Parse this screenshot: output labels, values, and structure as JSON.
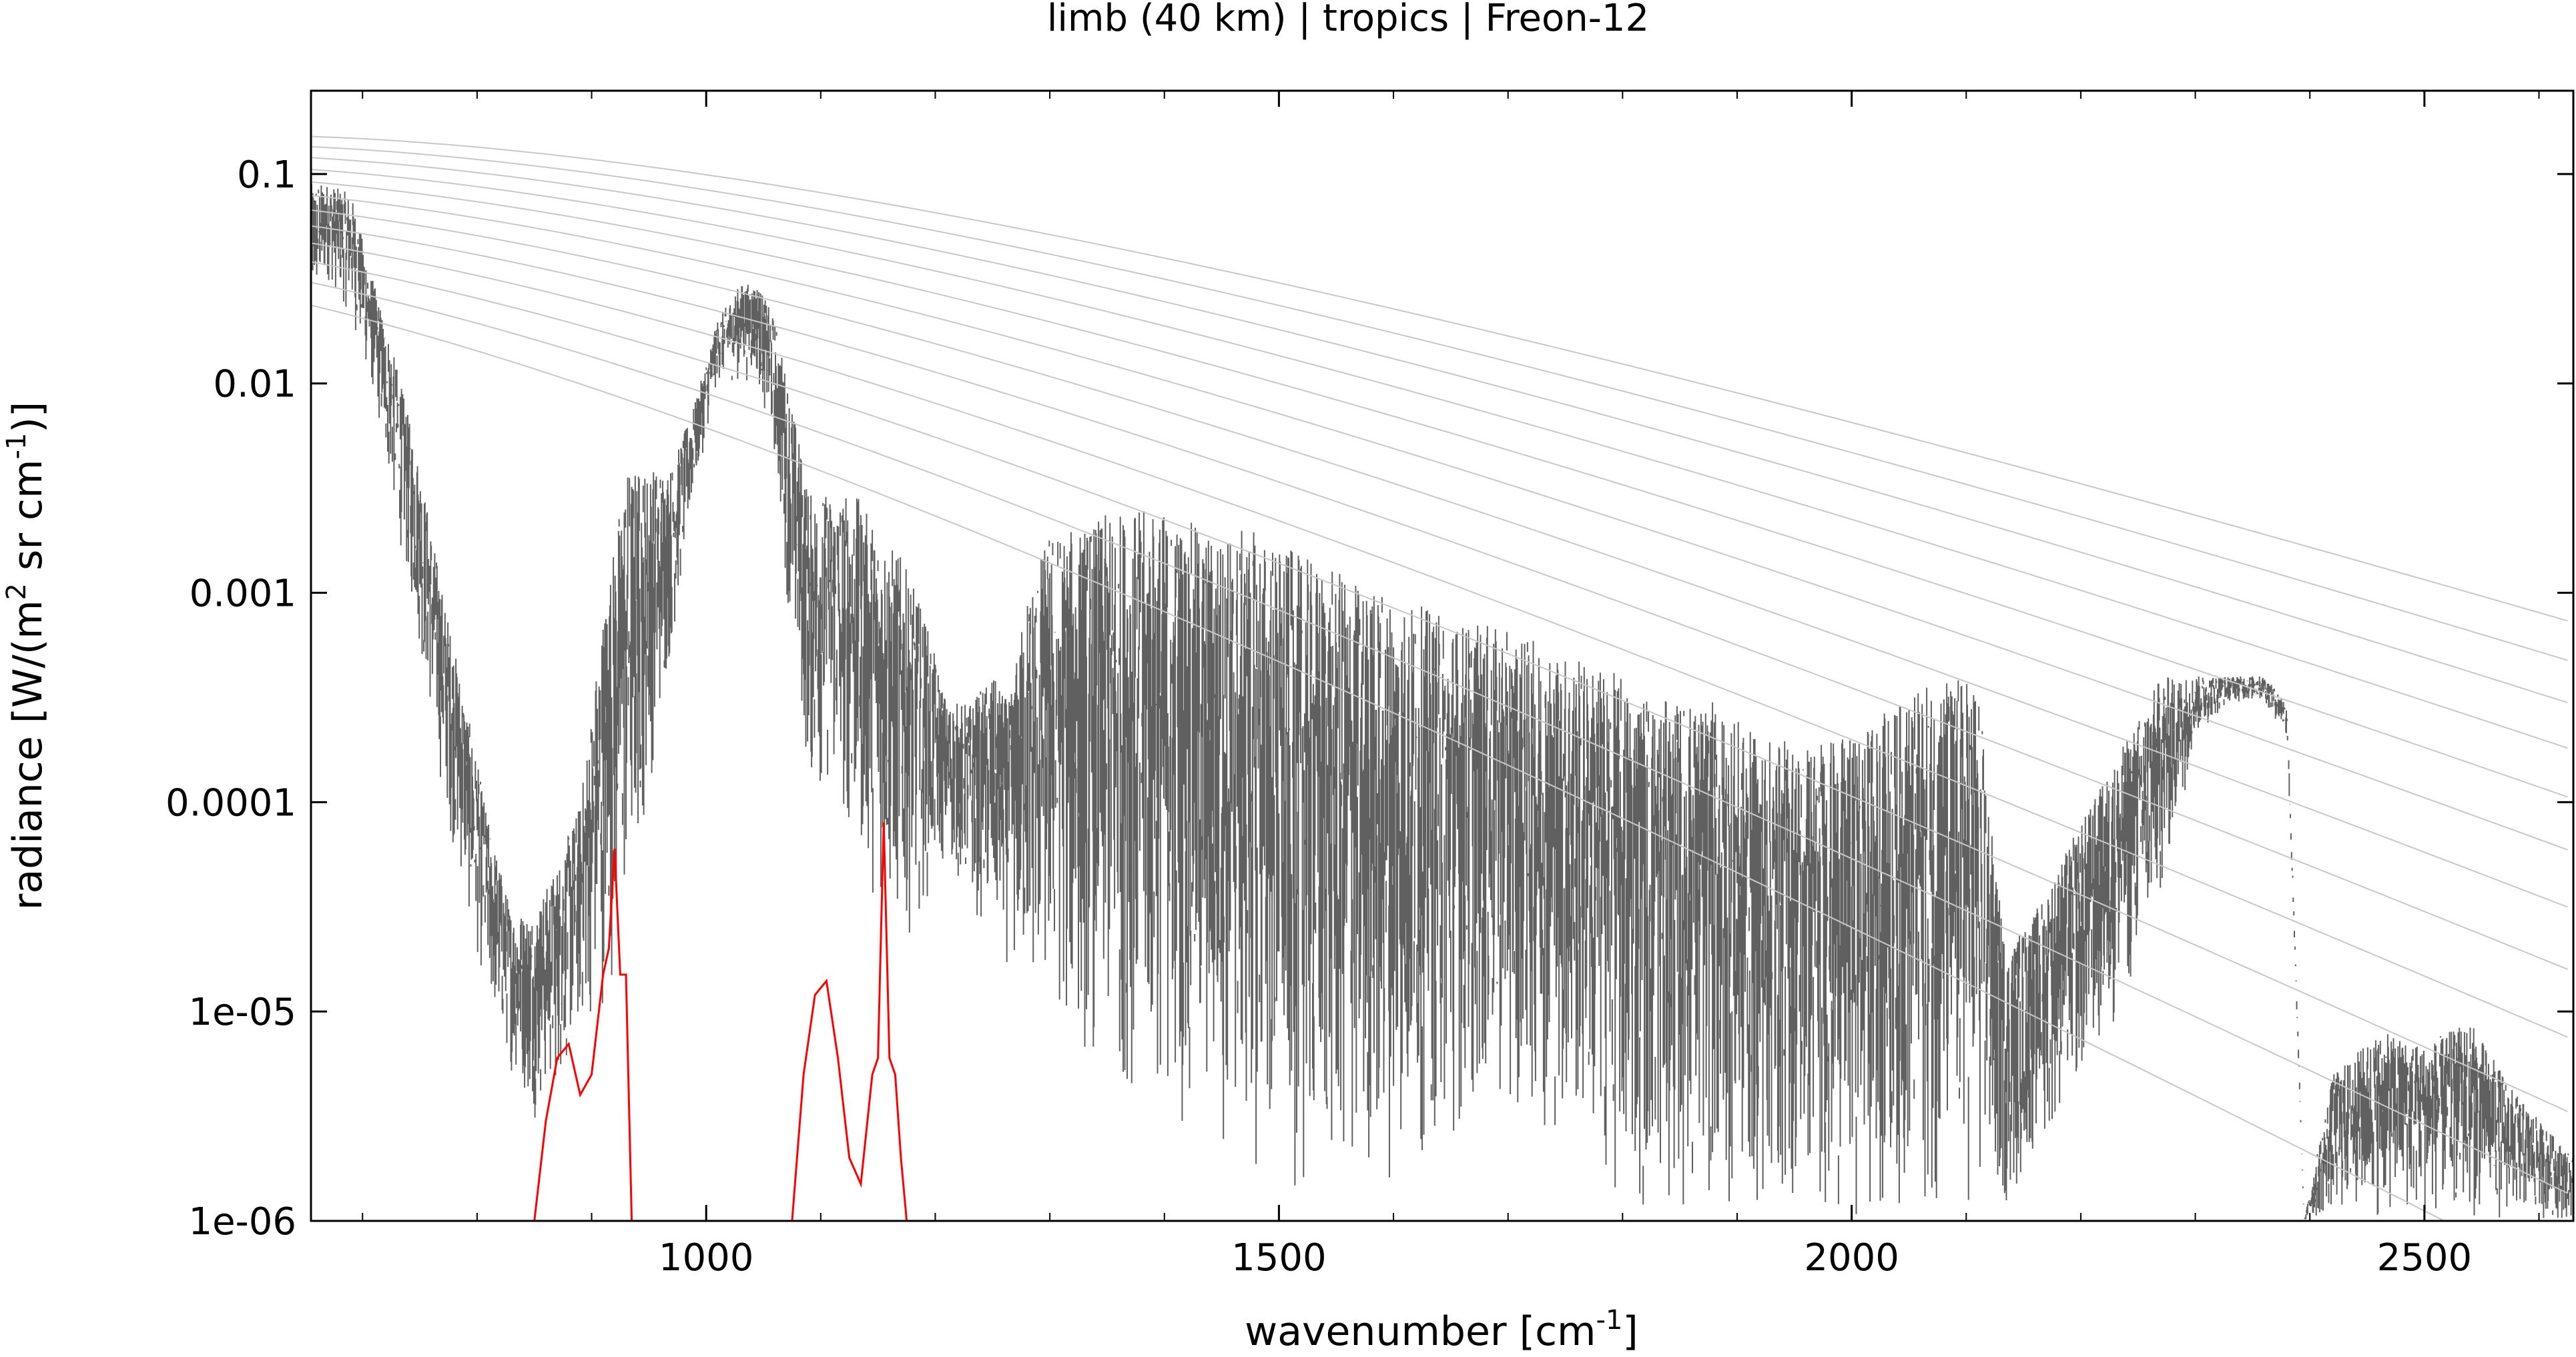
{
  "chart_data": {
    "type": "line",
    "title": "limb (40 km) | tropics | Freon-12",
    "xlabel": {
      "text": "wavenumber [cm",
      "sup": "-1",
      "tail": "]"
    },
    "ylabel": {
      "text": "radiance [W/(m",
      "sup1": "2",
      "mid": " sr cm",
      "sup2": "-1",
      "tail": ")]"
    },
    "xlim": [
      655,
      2630
    ],
    "ylim": [
      1e-06,
      0.25
    ],
    "yscale": "log",
    "grid": false,
    "legend": "none",
    "x_ticks": [
      {
        "value": 1000,
        "label": "1000"
      },
      {
        "value": 1500,
        "label": "1500"
      },
      {
        "value": 2000,
        "label": "2000"
      },
      {
        "value": 2500,
        "label": "2500"
      }
    ],
    "y_ticks": [
      {
        "value": 0.1,
        "label": "0.1"
      },
      {
        "value": 0.01,
        "label": "0.01"
      },
      {
        "value": 0.001,
        "label": "0.001"
      },
      {
        "value": 0.0001,
        "label": "0.0001"
      },
      {
        "value": 1e-05,
        "label": "1e-05"
      },
      {
        "value": 1e-06,
        "label": "1e-06"
      }
    ],
    "colors": {
      "spectrum": "#606060",
      "freon": "#ff0000",
      "planck": "#c8c8c8"
    },
    "series": [
      {
        "color": "#606060",
        "x": [
          655,
          670,
          690,
          710,
          730,
          750,
          770,
          790,
          810,
          830,
          850,
          870,
          890,
          910,
          930,
          950,
          970,
          990,
          1010,
          1030,
          1045,
          1060,
          1075,
          1090,
          1110,
          1130,
          1150,
          1170,
          1190,
          1210,
          1230,
          1250,
          1265,
          1280,
          1300,
          1320,
          1360,
          1400,
          1440,
          1480,
          1520,
          1560,
          1600,
          1640,
          1680,
          1720,
          1760,
          1800,
          1840,
          1880,
          1920,
          1960,
          2000,
          2040,
          2080,
          2110,
          2125,
          2135,
          2160,
          2200,
          2240,
          2270,
          2300,
          2330,
          2360,
          2380,
          2395,
          2420,
          2460,
          2500,
          2540,
          2580,
          2630
        ],
        "upper": [
          0.09,
          0.09,
          0.08,
          0.03,
          0.012,
          0.004,
          0.001,
          0.0003,
          8e-05,
          3e-05,
          3e-05,
          5e-05,
          0.0001,
          0.0008,
          0.004,
          0.004,
          0.004,
          0.008,
          0.02,
          0.03,
          0.03,
          0.02,
          0.008,
          0.003,
          0.003,
          0.003,
          0.002,
          0.0015,
          0.0008,
          0.0003,
          0.0003,
          0.0004,
          0.0003,
          0.001,
          0.002,
          0.002,
          0.0025,
          0.0025,
          0.002,
          0.002,
          0.0015,
          0.0012,
          0.001,
          0.0008,
          0.0007,
          0.0006,
          0.0005,
          0.0004,
          0.0003,
          0.0003,
          0.0002,
          0.0002,
          0.0002,
          0.0003,
          0.0004,
          0.0004,
          5e-05,
          2e-05,
          3e-05,
          8e-05,
          0.0002,
          0.0004,
          0.0004,
          0.0004,
          0.0004,
          0.0003,
          1e-06,
          5e-06,
          8e-06,
          7e-06,
          9e-06,
          4e-06,
          2e-06
        ],
        "lower": [
          0.02,
          0.03,
          0.02,
          0.008,
          0.002,
          0.0005,
          0.0001,
          3e-05,
          1e-05,
          5e-06,
          3e-06,
          4e-06,
          7e-06,
          1e-05,
          2e-05,
          0.0001,
          0.0005,
          0.003,
          0.01,
          0.01,
          0.01,
          0.004,
          0.0005,
          0.0001,
          0.0001,
          5e-05,
          3e-05,
          2e-05,
          3e-05,
          5e-05,
          3e-05,
          2e-05,
          1.5e-05,
          1e-05,
          8e-06,
          6e-06,
          4e-06,
          3e-06,
          2e-06,
          1.5e-06,
          1.2e-06,
          1e-06,
          1.5e-06,
          2e-06,
          3e-06,
          3e-06,
          2e-06,
          1e-06,
          1e-06,
          1e-06,
          1e-06,
          1e-06,
          1e-06,
          1e-06,
          1e-06,
          1e-06,
          1e-06,
          1e-06,
          2e-06,
          4e-06,
          1e-05,
          3e-05,
          0.0002,
          0.0003,
          0.0003,
          0.0002,
          1e-06,
          1e-06,
          1e-06,
          1e-06,
          1e-06,
          1e-06,
          1e-06
        ]
      },
      {
        "color": "#ff0000",
        "x": [
          850,
          860,
          870,
          880,
          890,
          900,
          910,
          915,
          920,
          925,
          930,
          935
        ],
        "y": [
          1e-06,
          3e-06,
          6e-06,
          7e-06,
          4e-06,
          5e-06,
          1.5e-05,
          2e-05,
          6e-05,
          1.5e-05,
          1.5e-05,
          1e-06
        ]
      },
      {
        "color": "#ff0000",
        "x": [
          1075,
          1085,
          1095,
          1105,
          1115,
          1125,
          1135,
          1145,
          1150,
          1155,
          1160,
          1165,
          1170,
          1175
        ],
        "y": [
          1e-06,
          5e-06,
          1.2e-05,
          1.4e-05,
          6e-06,
          2e-06,
          1.5e-06,
          5e-06,
          6e-06,
          8e-05,
          6e-06,
          5e-06,
          2e-06,
          1e-06
        ]
      },
      {
        "color": "#c8c8c8",
        "temperatures_K": [
          190,
          200,
          210,
          220,
          230,
          240,
          250,
          260,
          270,
          280,
          290,
          300
        ]
      }
    ]
  }
}
